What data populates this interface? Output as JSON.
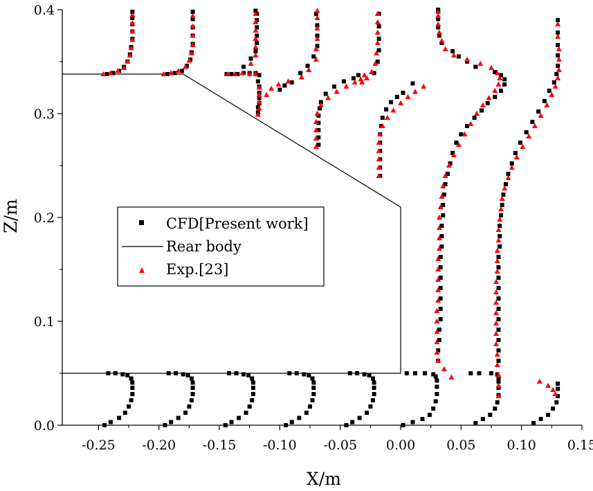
{
  "chart_data": {
    "type": "scatter",
    "title": "",
    "xlabel": "X/m",
    "ylabel": "Z/m",
    "xlim": [
      -0.28,
      0.15
    ],
    "ylim": [
      0.0,
      0.4
    ],
    "x_ticks": [
      "-0.25",
      "-0.20",
      "-0.15",
      "-0.10",
      "-0.05",
      "0.00",
      "0.05",
      "0.10",
      "0.15"
    ],
    "y_ticks": [
      "0.0",
      "0.1",
      "0.2",
      "0.3",
      "0.4"
    ],
    "x_tick_values": [
      -0.25,
      -0.2,
      -0.15,
      -0.1,
      -0.05,
      0.0,
      0.05,
      0.1,
      0.15
    ],
    "y_tick_values": [
      0.0,
      0.1,
      0.2,
      0.3,
      0.4
    ],
    "grid": false,
    "legend": {
      "placement": "center-left",
      "entries": [
        {
          "label": "CFD[Present work]",
          "marker": "square",
          "color": "#000000"
        },
        {
          "label": "Rear body",
          "marker": "line",
          "color": "#000000"
        },
        {
          "label": "Exp.[23]",
          "marker": "triangle",
          "color": "#ff0000"
        }
      ]
    },
    "rear_body": {
      "name": "Rear body",
      "x": [
        -0.28,
        -0.18,
        0.0,
        0.0,
        -0.28
      ],
      "z": [
        0.338,
        0.338,
        0.21,
        0.05,
        0.05
      ]
    },
    "stations": [
      {
        "name": "X=-0.245",
        "base_x": -0.245,
        "z_min": 0.338,
        "cfd_x": [
          -0.243,
          -0.238,
          -0.233,
          -0.229,
          -0.226,
          -0.224,
          -0.223,
          -0.222,
          -0.222,
          -0.222,
          -0.222,
          -0.222
        ],
        "cfd_z": [
          0.338,
          0.339,
          0.341,
          0.345,
          0.35,
          0.357,
          0.364,
          0.372,
          0.379,
          0.386,
          0.392,
          0.398
        ],
        "exp_x": [
          -0.246,
          -0.24,
          -0.234,
          -0.229,
          -0.226,
          -0.224,
          -0.223,
          -0.222,
          -0.222,
          -0.222,
          -0.222
        ],
        "exp_z": [
          0.338,
          0.339,
          0.341,
          0.344,
          0.35,
          0.356,
          0.363,
          0.371,
          0.379,
          0.387,
          0.395
        ]
      },
      {
        "name": "X=-0.195",
        "base_x": -0.195,
        "z_min": 0.338,
        "cfd_x": [
          -0.193,
          -0.187,
          -0.181,
          -0.177,
          -0.174,
          -0.173,
          -0.172,
          -0.172,
          -0.172,
          -0.172,
          -0.172
        ],
        "cfd_z": [
          0.338,
          0.339,
          0.341,
          0.346,
          0.352,
          0.359,
          0.367,
          0.375,
          0.383,
          0.391,
          0.398
        ],
        "exp_x": [
          -0.196,
          -0.19,
          -0.184,
          -0.178,
          -0.175,
          -0.173,
          -0.172,
          -0.172,
          -0.172,
          -0.172
        ],
        "exp_z": [
          0.338,
          0.339,
          0.341,
          0.345,
          0.351,
          0.358,
          0.366,
          0.375,
          0.384,
          0.394
        ]
      },
      {
        "name": "X=-0.145",
        "base_x": -0.145,
        "z_min": 0.3,
        "cfd_x": [
          -0.118,
          -0.118,
          -0.117,
          -0.117,
          -0.117,
          -0.117,
          -0.118,
          -0.117,
          -0.12,
          -0.125,
          -0.13,
          -0.135,
          -0.14,
          -0.144,
          -0.13,
          -0.124,
          -0.12,
          -0.119,
          -0.119,
          -0.119,
          -0.119,
          -0.119,
          -0.12
        ],
        "cfd_z": [
          0.301,
          0.306,
          0.31,
          0.315,
          0.32,
          0.326,
          0.331,
          0.337,
          0.339,
          0.339,
          0.339,
          0.338,
          0.338,
          0.338,
          0.345,
          0.353,
          0.36,
          0.368,
          0.375,
          0.383,
          0.39,
          0.396,
          0.399
        ],
        "exp_x": [
          -0.118,
          -0.117,
          -0.117,
          -0.117,
          -0.117,
          -0.12,
          -0.125,
          -0.131,
          -0.137,
          -0.143,
          -0.124,
          -0.12,
          -0.12,
          -0.12,
          -0.12,
          -0.12,
          -0.12
        ],
        "exp_z": [
          0.299,
          0.305,
          0.311,
          0.318,
          0.325,
          0.338,
          0.338,
          0.339,
          0.338,
          0.338,
          0.348,
          0.356,
          0.364,
          0.372,
          0.38,
          0.388,
          0.396
        ]
      },
      {
        "name": "X=-0.095",
        "base_x": -0.095,
        "z_min": 0.27,
        "cfd_x": [
          -0.068,
          -0.068,
          -0.068,
          -0.068,
          -0.068,
          -0.067,
          -0.066,
          -0.062,
          -0.055,
          -0.047,
          -0.039,
          -0.035,
          -0.1,
          -0.096,
          -0.09,
          -0.083,
          -0.077,
          -0.072,
          -0.069,
          -0.069,
          -0.069,
          -0.07
        ],
        "cfd_z": [
          0.27,
          0.277,
          0.284,
          0.291,
          0.298,
          0.305,
          0.311,
          0.319,
          0.326,
          0.331,
          0.334,
          0.337,
          0.323,
          0.327,
          0.33,
          0.339,
          0.346,
          0.355,
          0.365,
          0.375,
          0.385,
          0.396
        ],
        "exp_x": [
          -0.07,
          -0.07,
          -0.07,
          -0.07,
          -0.069,
          -0.066,
          -0.06,
          -0.053,
          -0.045,
          -0.038,
          -0.033,
          -0.03,
          -0.111,
          -0.107,
          -0.101,
          -0.093,
          -0.082,
          -0.076,
          -0.07,
          -0.07,
          -0.069,
          -0.069,
          -0.069,
          -0.069
        ],
        "exp_z": [
          0.268,
          0.276,
          0.284,
          0.292,
          0.3,
          0.308,
          0.315,
          0.321,
          0.326,
          0.33,
          0.333,
          0.337,
          0.318,
          0.324,
          0.328,
          0.331,
          0.335,
          0.342,
          0.352,
          0.362,
          0.372,
          0.382,
          0.392,
          0.399
        ]
      },
      {
        "name": "X=-0.045",
        "base_x": -0.045,
        "z_min": 0.24,
        "cfd_x": [
          -0.017,
          -0.017,
          -0.017,
          -0.017,
          -0.017,
          -0.017,
          -0.016,
          -0.015,
          -0.012,
          -0.008,
          -0.003,
          0.002,
          0.01,
          -0.022,
          -0.019,
          -0.018,
          -0.018,
          -0.018,
          -0.018
        ],
        "cfd_z": [
          0.24,
          0.248,
          0.256,
          0.264,
          0.272,
          0.28,
          0.288,
          0.296,
          0.304,
          0.311,
          0.316,
          0.32,
          0.329,
          0.339,
          0.35,
          0.361,
          0.372,
          0.384,
          0.396
        ],
        "exp_x": [
          -0.018,
          -0.018,
          -0.018,
          -0.018,
          -0.018,
          -0.017,
          -0.015,
          -0.011,
          -0.006,
          0.0,
          0.006,
          0.012,
          0.019,
          -0.032,
          -0.028,
          -0.024,
          -0.021,
          -0.02,
          -0.019,
          -0.019,
          -0.019,
          -0.019
        ],
        "exp_z": [
          0.24,
          0.248,
          0.256,
          0.264,
          0.272,
          0.28,
          0.288,
          0.296,
          0.303,
          0.31,
          0.316,
          0.321,
          0.326,
          0.33,
          0.334,
          0.34,
          0.348,
          0.358,
          0.368,
          0.378,
          0.388,
          0.396
        ]
      },
      {
        "name": "X=0.005",
        "base_x": 0.005,
        "z_min": 0.0,
        "cfd_x": [
          0.002,
          0.01,
          0.018,
          0.024,
          0.027,
          0.029,
          0.03,
          0.03,
          0.03,
          0.029,
          0.027,
          0.02,
          0.012,
          0.005,
          0.031,
          0.031,
          0.032,
          0.032,
          0.033,
          0.033,
          0.033,
          0.033,
          0.033,
          0.033,
          0.033,
          0.034,
          0.034,
          0.034,
          0.035,
          0.035,
          0.036,
          0.037,
          0.039,
          0.041,
          0.043,
          0.046,
          0.05,
          0.055,
          0.061,
          0.067,
          0.072,
          0.078,
          0.083,
          0.086,
          0.086,
          0.083,
          0.078,
          0.062,
          0.055,
          0.048,
          0.043,
          0.034,
          0.032,
          0.031,
          0.031,
          0.031,
          0.031
        ],
        "cfd_z": [
          0.0,
          0.003,
          0.006,
          0.01,
          0.016,
          0.023,
          0.03,
          0.037,
          0.043,
          0.047,
          0.049,
          0.05,
          0.05,
          0.05,
          0.062,
          0.072,
          0.082,
          0.092,
          0.102,
          0.112,
          0.122,
          0.132,
          0.142,
          0.152,
          0.162,
          0.172,
          0.182,
          0.192,
          0.202,
          0.212,
          0.222,
          0.232,
          0.242,
          0.252,
          0.262,
          0.272,
          0.28,
          0.288,
          0.296,
          0.303,
          0.31,
          0.316,
          0.322,
          0.328,
          0.333,
          0.337,
          0.34,
          0.345,
          0.35,
          0.355,
          0.36,
          0.368,
          0.375,
          0.383,
          0.391,
          0.398,
          0.4
        ],
        "exp_x": [
          0.042,
          0.036,
          0.031,
          0.03,
          0.03,
          0.03,
          0.03,
          0.03,
          0.031,
          0.031,
          0.031,
          0.031,
          0.031,
          0.032,
          0.032,
          0.032,
          0.032,
          0.033,
          0.034,
          0.035,
          0.037,
          0.04,
          0.044,
          0.048,
          0.053,
          0.058,
          0.063,
          0.068,
          0.073,
          0.078,
          0.081,
          0.082,
          0.08,
          0.075,
          0.066,
          0.055,
          0.044,
          0.037,
          0.034,
          0.032,
          0.031,
          0.031,
          0.031
        ],
        "exp_z": [
          0.046,
          0.054,
          0.062,
          0.07,
          0.08,
          0.09,
          0.1,
          0.11,
          0.12,
          0.13,
          0.14,
          0.15,
          0.16,
          0.17,
          0.18,
          0.19,
          0.2,
          0.21,
          0.22,
          0.23,
          0.24,
          0.25,
          0.26,
          0.27,
          0.28,
          0.29,
          0.3,
          0.308,
          0.315,
          0.322,
          0.328,
          0.334,
          0.339,
          0.344,
          0.348,
          0.352,
          0.356,
          0.362,
          0.37,
          0.378,
          0.386,
          0.394,
          0.398
        ]
      },
      {
        "name": "X=0.055",
        "base_x": 0.055,
        "z_min": 0.0,
        "cfd_x": [
          0.062,
          0.068,
          0.074,
          0.078,
          0.08,
          0.081,
          0.081,
          0.081,
          0.081,
          0.08,
          0.075,
          0.065,
          0.058,
          0.081,
          0.081,
          0.081,
          0.081,
          0.081,
          0.081,
          0.081,
          0.081,
          0.081,
          0.081,
          0.081,
          0.082,
          0.082,
          0.082,
          0.083,
          0.084,
          0.085,
          0.087,
          0.089,
          0.092,
          0.095,
          0.099,
          0.104,
          0.109,
          0.114,
          0.119,
          0.123,
          0.127,
          0.129,
          0.13,
          0.13,
          0.13,
          0.13,
          0.13
        ],
        "cfd_z": [
          0.002,
          0.006,
          0.01,
          0.016,
          0.022,
          0.029,
          0.036,
          0.042,
          0.046,
          0.049,
          0.05,
          0.05,
          0.05,
          0.062,
          0.072,
          0.082,
          0.092,
          0.102,
          0.112,
          0.122,
          0.132,
          0.142,
          0.152,
          0.162,
          0.172,
          0.182,
          0.192,
          0.202,
          0.212,
          0.222,
          0.232,
          0.242,
          0.252,
          0.262,
          0.272,
          0.282,
          0.292,
          0.302,
          0.312,
          0.322,
          0.33,
          0.338,
          0.346,
          0.356,
          0.366,
          0.378,
          0.39
        ],
        "exp_x": [
          0.081,
          0.081,
          0.081,
          0.08,
          0.08,
          0.079,
          0.079,
          0.079,
          0.079,
          0.079,
          0.079,
          0.079,
          0.08,
          0.08,
          0.08,
          0.081,
          0.081,
          0.082,
          0.083,
          0.084,
          0.086,
          0.089,
          0.092,
          0.096,
          0.101,
          0.106,
          0.111,
          0.116,
          0.121,
          0.125,
          0.128,
          0.13,
          0.131,
          0.131,
          0.131,
          0.13,
          0.13
        ],
        "exp_z": [
          0.028,
          0.038,
          0.048,
          0.058,
          0.068,
          0.078,
          0.088,
          0.098,
          0.108,
          0.118,
          0.128,
          0.138,
          0.148,
          0.158,
          0.168,
          0.178,
          0.188,
          0.198,
          0.208,
          0.218,
          0.228,
          0.238,
          0.248,
          0.258,
          0.268,
          0.278,
          0.288,
          0.298,
          0.308,
          0.318,
          0.326,
          0.334,
          0.342,
          0.352,
          0.362,
          0.374,
          0.386
        ]
      },
      {
        "name": "X=0.105",
        "base_x": 0.105,
        "z_min": 0.0,
        "cfd_x": [
          0.11,
          0.116,
          0.122,
          0.126,
          0.129,
          0.13,
          0.13,
          0.13
        ],
        "cfd_z": [
          0.002,
          0.006,
          0.01,
          0.016,
          0.022,
          0.028,
          0.035,
          0.04
        ],
        "exp_x": [
          0.128,
          0.126,
          0.122,
          0.115
        ],
        "exp_z": [
          0.03,
          0.034,
          0.038,
          0.042
        ]
      }
    ],
    "lower_profiles": [
      {
        "name": "lower X=-0.245",
        "cfd_x": [
          -0.245,
          -0.24,
          -0.233,
          -0.228,
          -0.225,
          -0.223,
          -0.222,
          -0.222,
          -0.222,
          -0.223,
          -0.226,
          -0.23,
          -0.236,
          -0.242
        ],
        "cfd_z": [
          0.0,
          0.003,
          0.007,
          0.012,
          0.018,
          0.024,
          0.03,
          0.036,
          0.041,
          0.045,
          0.048,
          0.049,
          0.05,
          0.05
        ]
      },
      {
        "name": "lower X=-0.195",
        "cfd_x": [
          -0.195,
          -0.19,
          -0.184,
          -0.178,
          -0.175,
          -0.173,
          -0.172,
          -0.172,
          -0.172,
          -0.173,
          -0.176,
          -0.18,
          -0.186,
          -0.192
        ],
        "cfd_z": [
          0.0,
          0.003,
          0.007,
          0.012,
          0.018,
          0.024,
          0.03,
          0.036,
          0.041,
          0.045,
          0.048,
          0.049,
          0.05,
          0.05
        ]
      },
      {
        "name": "lower X=-0.145",
        "cfd_x": [
          -0.145,
          -0.14,
          -0.134,
          -0.128,
          -0.125,
          -0.123,
          -0.122,
          -0.122,
          -0.122,
          -0.123,
          -0.126,
          -0.13,
          -0.136,
          -0.142
        ],
        "cfd_z": [
          0.0,
          0.003,
          0.007,
          0.012,
          0.018,
          0.024,
          0.03,
          0.036,
          0.041,
          0.045,
          0.048,
          0.049,
          0.05,
          0.05
        ]
      },
      {
        "name": "lower X=-0.095",
        "cfd_x": [
          -0.095,
          -0.09,
          -0.084,
          -0.078,
          -0.075,
          -0.073,
          -0.072,
          -0.072,
          -0.072,
          -0.073,
          -0.076,
          -0.08,
          -0.086,
          -0.092
        ],
        "cfd_z": [
          0.0,
          0.003,
          0.007,
          0.012,
          0.018,
          0.024,
          0.03,
          0.036,
          0.041,
          0.045,
          0.048,
          0.049,
          0.05,
          0.05
        ]
      },
      {
        "name": "lower X=-0.045",
        "cfd_x": [
          -0.045,
          -0.04,
          -0.034,
          -0.028,
          -0.025,
          -0.023,
          -0.022,
          -0.022,
          -0.022,
          -0.023,
          -0.026,
          -0.03,
          -0.036,
          -0.042
        ],
        "cfd_z": [
          0.0,
          0.003,
          0.007,
          0.012,
          0.018,
          0.024,
          0.03,
          0.036,
          0.041,
          0.045,
          0.048,
          0.049,
          0.05,
          0.05
        ]
      }
    ]
  }
}
